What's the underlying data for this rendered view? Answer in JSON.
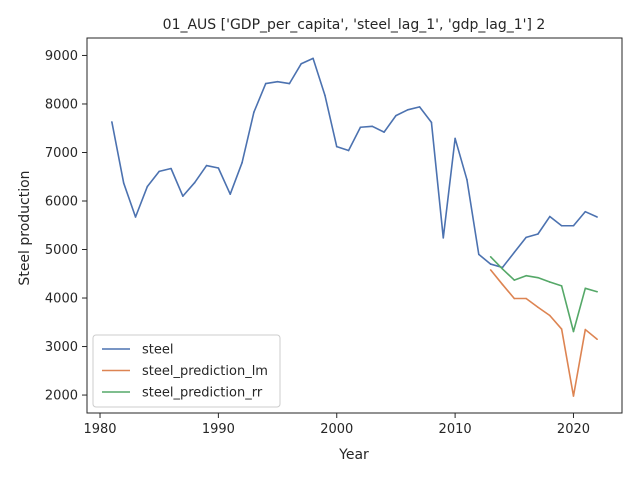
{
  "chart_data": {
    "type": "line",
    "title": "01_AUS ['GDP_per_capita', 'steel_lag_1', 'gdp_lag_1'] 2",
    "xlabel": "Year",
    "ylabel": "Steel production",
    "xlim": [
      1978.9,
      2024.1
    ],
    "ylim": [
      1630,
      9360
    ],
    "xticks": [
      1980,
      1990,
      2000,
      2010,
      2020
    ],
    "yticks": [
      2000,
      3000,
      4000,
      5000,
      6000,
      7000,
      8000,
      9000
    ],
    "grid": false,
    "legend_position": "lower-left",
    "series": [
      {
        "name": "steel",
        "color": "#4c72b0",
        "x": [
          1981,
          1982,
          1983,
          1984,
          1985,
          1986,
          1987,
          1988,
          1989,
          1990,
          1991,
          1992,
          1993,
          1994,
          1995,
          1996,
          1997,
          1998,
          1999,
          2000,
          2001,
          2002,
          2003,
          2004,
          2005,
          2006,
          2007,
          2008,
          2009,
          2010,
          2011,
          2012,
          2013,
          2014,
          2015,
          2016,
          2017,
          2018,
          2019,
          2020,
          2021,
          2022
        ],
        "y": [
          7630,
          6370,
          5670,
          6300,
          6610,
          6670,
          6100,
          6380,
          6730,
          6680,
          6140,
          6790,
          7830,
          8420,
          8460,
          8420,
          8830,
          8940,
          8180,
          7120,
          7040,
          7520,
          7540,
          7420,
          7760,
          7880,
          7940,
          7620,
          5240,
          7290,
          6440,
          4900,
          4700,
          4630,
          4940,
          5250,
          5320,
          5680,
          5490,
          5490,
          5780,
          5670
        ]
      },
      {
        "name": "steel_prediction_lm",
        "color": "#dd8452",
        "x": [
          2013,
          2014,
          2015,
          2016,
          2017,
          2018,
          2019,
          2020,
          2021,
          2022
        ],
        "y": [
          4580,
          4280,
          3990,
          3990,
          3810,
          3640,
          3360,
          1980,
          3350,
          3150
        ]
      },
      {
        "name": "steel_prediction_rr",
        "color": "#55a868",
        "x": [
          2013,
          2014,
          2015,
          2016,
          2017,
          2018,
          2019,
          2020,
          2021,
          2022
        ],
        "y": [
          4850,
          4600,
          4370,
          4460,
          4420,
          4330,
          4250,
          3310,
          4200,
          4130
        ]
      }
    ]
  }
}
